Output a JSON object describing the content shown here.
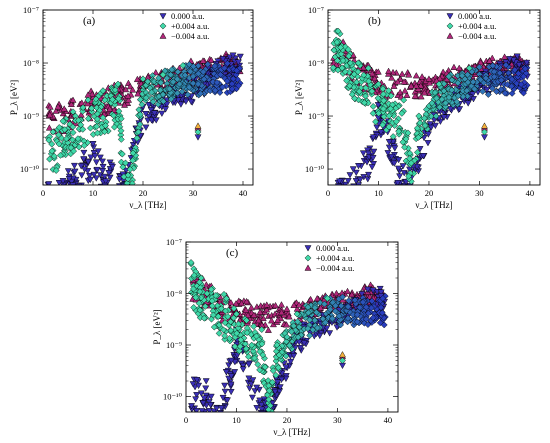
{
  "figure": {
    "panels": [
      "(a)",
      "(b)",
      "(c)"
    ]
  },
  "colors": {
    "series_0": "#3a2fb5",
    "series_plus": "#3fd8a8",
    "series_minus": "#b0277a",
    "outline": "#000000"
  },
  "chart_data": [
    {
      "type": "scatter",
      "panel": "(a)",
      "xlabel": "ν_λ [THz]",
      "ylabel": "P_λ [eV²]",
      "xlim": [
        0,
        42
      ],
      "ylim": [
        5e-11,
        1e-07
      ],
      "yscale": "log",
      "xticks": [
        0,
        10,
        20,
        30,
        40
      ],
      "yticks": [
        "10⁻¹⁰",
        "10⁻⁹",
        "10⁻⁸",
        "10⁻⁷"
      ],
      "legend_position": "top-right",
      "series": [
        {
          "name": "0.000 a.u.",
          "marker": "triangle-down",
          "color": "#3a2fb5",
          "points": [
            [
              4,
              6e-11
            ],
            [
              10,
              3e-10
            ],
            [
              16,
              8e-11
            ],
            [
              20,
              1.5e-09
            ],
            [
              25,
              3e-09
            ],
            [
              30,
              5e-09
            ],
            [
              33,
              8e-09
            ],
            [
              36,
              1.2e-08
            ],
            [
              38,
              1.4e-08
            ],
            [
              31,
              4e-10
            ]
          ]
        },
        {
          "name": "+0.004 a.u.",
          "marker": "diamond",
          "color": "#3fd8a8",
          "points": [
            [
              2,
              5e-10
            ],
            [
              4,
              8e-10
            ],
            [
              6,
              1.2e-09
            ],
            [
              9,
              2e-09
            ],
            [
              12,
              3e-09
            ],
            [
              15,
              4e-09
            ],
            [
              16.5,
              1.3e-10
            ],
            [
              18,
              2e-10
            ],
            [
              20,
              5e-09
            ],
            [
              24,
              6e-09
            ],
            [
              28,
              9e-09
            ],
            [
              31,
              5e-10
            ]
          ]
        },
        {
          "name": "−0.004 a.u.",
          "marker": "triangle-up",
          "color": "#b0277a",
          "points": [
            [
              3,
              1.5e-09
            ],
            [
              6,
              2e-09
            ],
            [
              9,
              2.5e-09
            ],
            [
              12,
              3e-09
            ],
            [
              15,
              4e-09
            ],
            [
              20,
              5e-09
            ],
            [
              26,
              8e-09
            ],
            [
              32,
              1.1e-08
            ],
            [
              37,
              1.3e-08
            ],
            [
              31,
              6e-10
            ]
          ]
        }
      ]
    },
    {
      "type": "scatter",
      "panel": "(b)",
      "xlabel": "ν_λ [THz]",
      "ylabel": "P_λ [eV²]",
      "xlim": [
        0,
        42
      ],
      "ylim": [
        5e-11,
        1e-07
      ],
      "yscale": "log",
      "xticks": [
        0,
        10,
        20,
        30,
        40
      ],
      "yticks": [
        "10⁻¹⁰",
        "10⁻⁹",
        "10⁻⁸",
        "10⁻⁷"
      ],
      "legend_position": "top-right",
      "series": [
        {
          "name": "0.000 a.u.",
          "marker": "triangle-down",
          "color": "#3a2fb5",
          "points": [
            [
              4,
              6e-11
            ],
            [
              5,
              1e-10
            ],
            [
              7,
              2e-10
            ],
            [
              9,
              4e-10
            ],
            [
              10,
              2e-09
            ],
            [
              12,
              8e-10
            ],
            [
              14,
              1.5e-10
            ],
            [
              16,
              8e-11
            ],
            [
              22,
              2e-09
            ],
            [
              30,
              6e-09
            ],
            [
              36,
              1.2e-08
            ],
            [
              31,
              4e-10
            ]
          ]
        },
        {
          "name": "+0.004 a.u.",
          "marker": "diamond",
          "color": "#3fd8a8",
          "points": [
            [
              2,
              4e-08
            ],
            [
              4,
              1.8e-08
            ],
            [
              6,
              1e-08
            ],
            [
              8,
              8e-09
            ],
            [
              10,
              4e-09
            ],
            [
              12,
              3e-09
            ],
            [
              15,
              2e-09
            ],
            [
              16.5,
              1.3e-10
            ],
            [
              18,
              1e-09
            ],
            [
              22,
              4e-09
            ],
            [
              28,
              8e-09
            ],
            [
              31,
              5e-10
            ]
          ]
        },
        {
          "name": "−0.004 a.u.",
          "marker": "triangle-up",
          "color": "#b0277a",
          "points": [
            [
              3,
              2.5e-08
            ],
            [
              5,
              1.4e-08
            ],
            [
              8,
              9e-09
            ],
            [
              12,
              7e-09
            ],
            [
              16,
              6e-09
            ],
            [
              20,
              5e-09
            ],
            [
              26,
              8e-09
            ],
            [
              32,
              1.1e-08
            ],
            [
              37,
              1.3e-08
            ],
            [
              31,
              6e-10
            ]
          ]
        }
      ]
    },
    {
      "type": "scatter",
      "panel": "(c)",
      "xlabel": "ν_λ [THz]",
      "ylabel": "P_λ [eV²]",
      "xlim": [
        0,
        42
      ],
      "ylim": [
        5e-11,
        1e-07
      ],
      "yscale": "log",
      "xticks": [
        0,
        10,
        20,
        30,
        40
      ],
      "yticks": [
        "10⁻¹⁰",
        "10⁻⁹",
        "10⁻⁸",
        "10⁻⁷"
      ],
      "legend_position": "top-right",
      "series": [
        {
          "name": "0.000 a.u.",
          "marker": "triangle-down",
          "color": "#3a2fb5",
          "points": [
            [
              4,
              2e-10
            ],
            [
              5,
              1e-10
            ],
            [
              7,
              6e-11
            ],
            [
              8,
              3e-10
            ],
            [
              9,
              5e-10
            ],
            [
              10,
              2e-09
            ],
            [
              12,
              8e-10
            ],
            [
              14,
              1.5e-10
            ],
            [
              16,
              8e-11
            ],
            [
              22,
              2e-09
            ],
            [
              30,
              6e-09
            ],
            [
              36,
              1.2e-08
            ],
            [
              31,
              4e-10
            ]
          ]
        },
        {
          "name": "+0.004 a.u.",
          "marker": "diamond",
          "color": "#3fd8a8",
          "points": [
            [
              1,
              4e-08
            ],
            [
              3,
              2e-08
            ],
            [
              5,
              1.2e-08
            ],
            [
              8,
              8e-09
            ],
            [
              10,
              4e-09
            ],
            [
              12,
              3e-09
            ],
            [
              15,
              2e-09
            ],
            [
              16.5,
              1.3e-10
            ],
            [
              18,
              1e-09
            ],
            [
              22,
              4e-09
            ],
            [
              28,
              8e-09
            ],
            [
              31,
              5e-10
            ]
          ]
        },
        {
          "name": "−0.004 a.u.",
          "marker": "triangle-up",
          "color": "#b0277a",
          "points": [
            [
              2,
              2.5e-08
            ],
            [
              5,
              1.4e-08
            ],
            [
              8,
              9e-09
            ],
            [
              12,
              7e-09
            ],
            [
              16,
              6e-09
            ],
            [
              20,
              5e-09
            ],
            [
              26,
              8e-09
            ],
            [
              32,
              1.1e-08
            ],
            [
              37,
              1.3e-08
            ],
            [
              31,
              6e-10
            ]
          ]
        }
      ]
    }
  ]
}
